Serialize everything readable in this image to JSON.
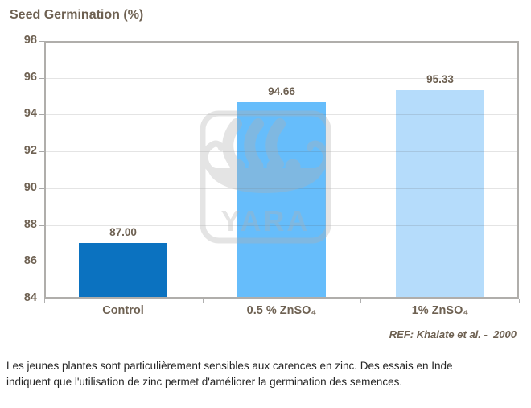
{
  "chart": {
    "title": "Seed Germination (%)",
    "reference": "REF: Khalate et al. -  2000"
  },
  "chart_data": {
    "type": "bar",
    "title": "Seed Germination (%)",
    "categories": [
      "Control",
      "0.5 % ZnSO₄",
      "1% ZnSO₄"
    ],
    "values": [
      87.0,
      94.66,
      95.33
    ],
    "value_labels": [
      "87.00",
      "94.66",
      "95.33"
    ],
    "bar_colors": [
      "#0b72c0",
      "#66bdfb",
      "#b5dcfb"
    ],
    "ylim": [
      84,
      98
    ],
    "ytick_step": 2,
    "ytick_labels": [
      "98",
      "96",
      "94",
      "92",
      "90",
      "88",
      "86",
      "84"
    ],
    "grid": true,
    "legend": "none",
    "annotation": "REF: Khalate et al. -  2000"
  },
  "watermark": {
    "icon": "yara-viking-ship-logo",
    "text": "YARA",
    "color": "#b1b1b1"
  },
  "caption": {
    "lines": [
      "Les jeunes plantes sont particulièrement sensibles aux carences en zinc. Des essais en Inde",
      "indiquent que l'utilisation de zinc permet d'améliorer la germination des semences."
    ]
  },
  "colors": {
    "axis_text": "#6e6152",
    "axis_border": "#b0aeab",
    "caption_text": "#262626"
  }
}
